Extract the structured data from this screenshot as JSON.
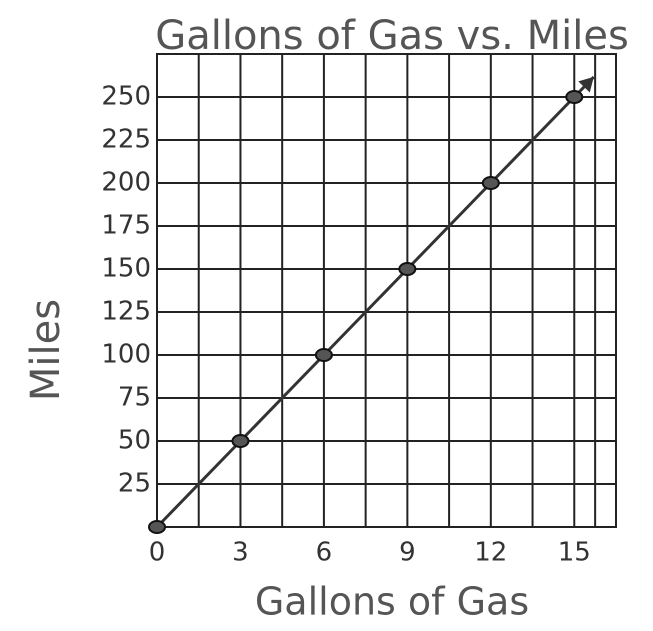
{
  "chart_data": {
    "type": "line",
    "title": "Gallons of Gas vs. Miles",
    "x_label": "Gallons of Gas",
    "y_label": "Miles",
    "x": [
      0,
      3,
      6,
      9,
      12,
      15
    ],
    "series": [
      {
        "name": "Miles",
        "color": "#333333",
        "values": [
          0,
          50,
          100,
          150,
          200,
          250
        ]
      }
    ],
    "xlim": [
      0,
      16.5
    ],
    "xticks": [
      0,
      3,
      6,
      9,
      12,
      15
    ],
    "ylim": [
      0,
      275
    ],
    "yticks": [
      25,
      50,
      75,
      100,
      125,
      150,
      175,
      200,
      225,
      250
    ],
    "grid": true
  }
}
